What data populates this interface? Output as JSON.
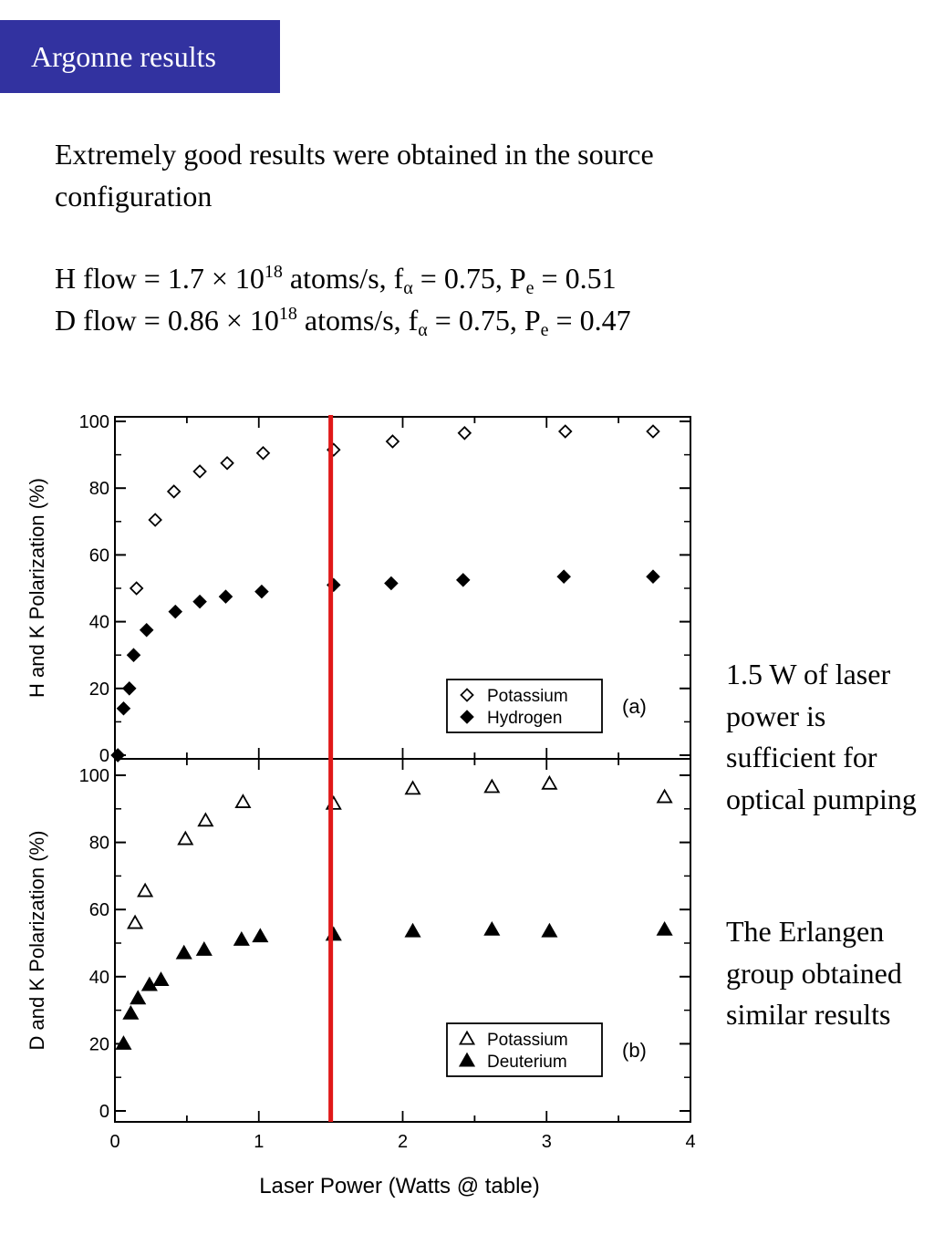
{
  "slide": {
    "title": "Argonne results",
    "intro": "Extremely good results were obtained in the source configuration",
    "h_flow": {
      "lead": "H flow =  1.7 × 10",
      "exp": "18",
      "mid": " atoms/s, f",
      "sub_alpha": "α",
      "mid2": " = 0.75, P",
      "sub_e": "e",
      "tail": " = 0.51"
    },
    "d_flow": {
      "lead": "D flow = 0.86 × 10",
      "exp": "18",
      "mid": " atoms/s, f",
      "sub_alpha": "α",
      "mid2": " = 0.75, P",
      "sub_e": "e",
      "tail": " = 0.47"
    },
    "side_note_1": "1.5 W of laser power is sufficient for optical pumping",
    "side_note_2": "The Erlangen group obtained similar results"
  },
  "chart_data": [
    {
      "type": "scatter",
      "panel_label": "(a)",
      "ylabel": "H  and  K  Polarization (%)",
      "xlabel": "",
      "xlim": [
        0,
        4
      ],
      "ylim": [
        0,
        100
      ],
      "yticks": [
        0,
        20,
        40,
        60,
        80,
        100
      ],
      "legend_position": "bottom-right",
      "marker_line": {
        "x": 1.5,
        "color": "#e01818"
      },
      "series": [
        {
          "name": "Potassium",
          "marker": "open-diamond",
          "x": [
            0.02,
            0.15,
            0.28,
            0.41,
            0.59,
            0.78,
            1.03,
            1.52,
            1.93,
            2.43,
            3.13,
            3.74
          ],
          "y": [
            0,
            50,
            70.5,
            79,
            85,
            87.5,
            90.5,
            91.5,
            94,
            96.5,
            97,
            97
          ]
        },
        {
          "name": "Hydrogen",
          "marker": "filled-diamond",
          "x": [
            0.02,
            0.06,
            0.1,
            0.13,
            0.22,
            0.42,
            0.59,
            0.77,
            1.02,
            1.52,
            1.92,
            2.42,
            3.12,
            3.74
          ],
          "y": [
            0,
            14,
            20,
            30,
            37.5,
            43,
            46,
            47.5,
            49,
            51,
            51.5,
            52.5,
            53.5,
            53.5
          ]
        }
      ]
    },
    {
      "type": "scatter",
      "panel_label": "(b)",
      "ylabel": "D  and  K  Polarization (%)",
      "xlabel": "Laser Power (Watts @ table)",
      "xlim": [
        0,
        4
      ],
      "ylim": [
        0,
        100
      ],
      "xticks": [
        0,
        1,
        2,
        3,
        4
      ],
      "yticks": [
        0,
        20,
        40,
        60,
        80,
        100
      ],
      "legend_position": "bottom-right",
      "marker_line": {
        "x": 1.5,
        "color": "#e01818"
      },
      "series": [
        {
          "name": "Potassium",
          "marker": "open-triangle",
          "x": [
            0.14,
            0.21,
            0.49,
            0.63,
            0.89,
            1.52,
            2.07,
            2.62,
            3.02,
            3.82
          ],
          "y": [
            56,
            65.5,
            81,
            86.5,
            92,
            91.5,
            96,
            96.5,
            97.5,
            93.5
          ]
        },
        {
          "name": "Deuterium",
          "marker": "filled-triangle",
          "x": [
            0.06,
            0.11,
            0.16,
            0.24,
            0.32,
            0.48,
            0.62,
            0.88,
            1.01,
            1.52,
            2.07,
            2.62,
            3.02,
            3.82
          ],
          "y": [
            20,
            29,
            33.5,
            37.5,
            39,
            47,
            48,
            51,
            52,
            52.5,
            53.5,
            54,
            53.5,
            54
          ]
        }
      ]
    }
  ]
}
